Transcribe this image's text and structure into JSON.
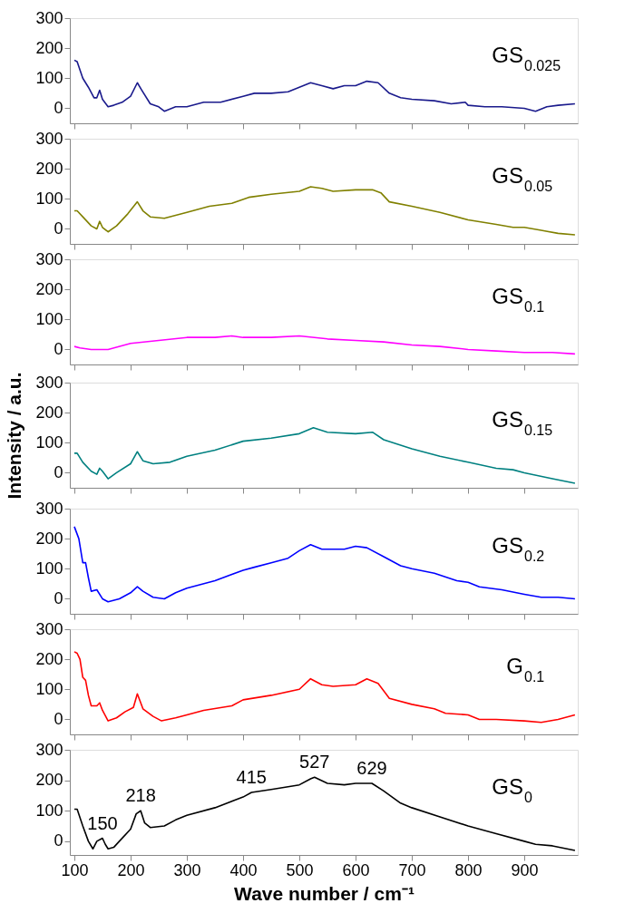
{
  "chart_data": [
    {
      "type": "line",
      "xlim": [
        92,
        995
      ],
      "xticks": [
        100,
        200,
        300,
        400,
        500,
        600,
        700,
        800,
        900
      ],
      "ylim": [
        -50,
        300
      ],
      "yticks": [
        0,
        100,
        200,
        300
      ],
      "tick_labels": "y",
      "series": [
        {
          "name": "GS$_{0.025}$",
          "color": "#1a1a8c",
          "x": [
            100,
            105,
            115,
            125,
            135,
            140,
            145,
            150,
            160,
            170,
            185,
            200,
            212,
            220,
            235,
            250,
            260,
            280,
            300,
            330,
            360,
            400,
            420,
            450,
            480,
            500,
            520,
            540,
            560,
            580,
            600,
            620,
            640,
            660,
            680,
            700,
            740,
            770,
            795,
            800,
            830,
            860,
            900,
            920,
            940,
            960,
            990
          ],
          "values": [
            160,
            155,
            100,
            70,
            35,
            35,
            60,
            30,
            5,
            10,
            20,
            40,
            85,
            60,
            15,
            5,
            -10,
            5,
            5,
            20,
            20,
            40,
            50,
            50,
            55,
            70,
            85,
            75,
            65,
            75,
            75,
            90,
            85,
            50,
            35,
            30,
            25,
            15,
            20,
            10,
            5,
            5,
            0,
            -10,
            5,
            10,
            15
          ]
        }
      ]
    },
    {
      "type": "line",
      "xlim": [
        92,
        995
      ],
      "xticks": [
        100,
        200,
        300,
        400,
        500,
        600,
        700,
        800,
        900
      ],
      "ylim": [
        -50,
        300
      ],
      "yticks": [
        0,
        100,
        200,
        300
      ],
      "tick_labels": "y",
      "series": [
        {
          "name": "GS$_{0.05}$",
          "color": "#808000",
          "x": [
            100,
            105,
            115,
            130,
            140,
            145,
            150,
            160,
            175,
            195,
            212,
            222,
            235,
            260,
            300,
            340,
            380,
            410,
            450,
            500,
            520,
            540,
            560,
            600,
            630,
            645,
            660,
            700,
            750,
            800,
            850,
            880,
            900,
            930,
            960,
            990
          ],
          "values": [
            60,
            60,
            40,
            10,
            0,
            25,
            5,
            -10,
            10,
            50,
            90,
            60,
            40,
            35,
            55,
            75,
            85,
            105,
            115,
            125,
            140,
            135,
            125,
            130,
            130,
            120,
            90,
            75,
            55,
            30,
            15,
            5,
            5,
            -5,
            -15,
            -20
          ]
        }
      ]
    },
    {
      "type": "line",
      "xlim": [
        92,
        995
      ],
      "xticks": [
        100,
        200,
        300,
        400,
        500,
        600,
        700,
        800,
        900
      ],
      "ylim": [
        -50,
        300
      ],
      "yticks": [
        0,
        100,
        200,
        300
      ],
      "tick_labels": "y",
      "series": [
        {
          "name": "GS$_{0.1}$",
          "color": "#ff00ff",
          "x": [
            100,
            110,
            130,
            160,
            200,
            250,
            300,
            350,
            380,
            400,
            450,
            500,
            550,
            600,
            650,
            700,
            750,
            800,
            850,
            900,
            950,
            990
          ],
          "values": [
            10,
            5,
            0,
            0,
            20,
            30,
            40,
            40,
            45,
            40,
            40,
            45,
            35,
            30,
            25,
            15,
            10,
            0,
            -5,
            -10,
            -10,
            -15
          ]
        }
      ]
    },
    {
      "type": "line",
      "xlim": [
        92,
        995
      ],
      "xticks": [
        100,
        200,
        300,
        400,
        500,
        600,
        700,
        800,
        900
      ],
      "ylim": [
        -50,
        300
      ],
      "yticks": [
        0,
        100,
        200,
        300
      ],
      "tick_labels": "y",
      "ylabel": "Intensity / a.u.",
      "series": [
        {
          "name": "GS$_{0.15}$",
          "color": "#008080",
          "x": [
            100,
            105,
            115,
            130,
            140,
            145,
            150,
            160,
            175,
            200,
            212,
            222,
            240,
            270,
            300,
            350,
            400,
            450,
            500,
            525,
            550,
            600,
            630,
            650,
            700,
            750,
            800,
            850,
            880,
            900,
            950,
            990
          ],
          "values": [
            65,
            65,
            35,
            5,
            -5,
            15,
            5,
            -20,
            0,
            30,
            70,
            40,
            30,
            35,
            55,
            75,
            105,
            115,
            130,
            150,
            135,
            130,
            135,
            110,
            80,
            55,
            35,
            15,
            10,
            0,
            -20,
            -35
          ]
        }
      ]
    },
    {
      "type": "line",
      "xlim": [
        92,
        995
      ],
      "xticks": [
        100,
        200,
        300,
        400,
        500,
        600,
        700,
        800,
        900
      ],
      "ylim": [
        -50,
        300
      ],
      "yticks": [
        0,
        100,
        200,
        300
      ],
      "tick_labels": "y",
      "series": [
        {
          "name": "GS$_{0.2}$",
          "color": "#0000ff",
          "x": [
            100,
            108,
            115,
            120,
            125,
            130,
            140,
            150,
            160,
            180,
            200,
            212,
            222,
            240,
            260,
            280,
            300,
            350,
            400,
            420,
            450,
            480,
            500,
            520,
            540,
            560,
            580,
            600,
            620,
            650,
            680,
            700,
            740,
            780,
            800,
            820,
            860,
            900,
            930,
            960,
            990
          ],
          "values": [
            240,
            200,
            120,
            120,
            70,
            25,
            30,
            0,
            -10,
            0,
            20,
            40,
            25,
            5,
            0,
            20,
            35,
            60,
            95,
            105,
            120,
            135,
            160,
            180,
            165,
            165,
            165,
            175,
            170,
            140,
            110,
            100,
            85,
            60,
            55,
            40,
            30,
            15,
            5,
            5,
            0
          ]
        }
      ]
    },
    {
      "type": "line",
      "xlim": [
        92,
        995
      ],
      "xticks": [
        100,
        200,
        300,
        400,
        500,
        600,
        700,
        800,
        900
      ],
      "ylim": [
        -50,
        300
      ],
      "yticks": [
        0,
        100,
        200,
        300
      ],
      "tick_labels": "y",
      "series": [
        {
          "name": "G$_{0.1}$",
          "color": "#ff0000",
          "x": [
            100,
            105,
            110,
            115,
            120,
            125,
            130,
            140,
            145,
            150,
            160,
            175,
            190,
            205,
            212,
            222,
            240,
            255,
            280,
            300,
            330,
            380,
            400,
            450,
            500,
            520,
            540,
            560,
            600,
            620,
            640,
            660,
            700,
            740,
            760,
            800,
            820,
            850,
            900,
            930,
            960,
            990
          ],
          "values": [
            225,
            220,
            200,
            140,
            130,
            80,
            45,
            45,
            55,
            30,
            -5,
            5,
            25,
            40,
            85,
            35,
            10,
            -5,
            5,
            15,
            30,
            45,
            65,
            80,
            100,
            135,
            115,
            110,
            115,
            135,
            120,
            70,
            50,
            35,
            20,
            15,
            0,
            0,
            -5,
            -10,
            0,
            15
          ]
        }
      ]
    },
    {
      "type": "line",
      "xlim": [
        92,
        995
      ],
      "xticks": [
        100,
        200,
        300,
        400,
        500,
        600,
        700,
        800,
        900
      ],
      "ylim": [
        -45,
        300
      ],
      "yticks": [
        0,
        100,
        200,
        300
      ],
      "xlabel": "Wave number / cm⁻¹",
      "series": [
        {
          "name": "GS$_{0}$",
          "color": "#000000",
          "x": [
            100,
            105,
            115,
            125,
            133,
            140,
            150,
            155,
            160,
            170,
            180,
            200,
            210,
            218,
            225,
            235,
            260,
            280,
            300,
            350,
            400,
            415,
            450,
            500,
            520,
            527,
            550,
            580,
            600,
            629,
            650,
            680,
            700,
            750,
            800,
            850,
            900,
            920,
            950,
            990
          ],
          "values": [
            105,
            105,
            50,
            0,
            -25,
            0,
            10,
            -10,
            -25,
            -20,
            0,
            40,
            90,
            100,
            60,
            45,
            50,
            70,
            85,
            110,
            145,
            160,
            170,
            185,
            205,
            210,
            190,
            185,
            190,
            190,
            165,
            125,
            110,
            80,
            50,
            25,
            0,
            -10,
            -15,
            -30
          ]
        }
      ],
      "annotations": [
        {
          "text": "150",
          "x": 150,
          "y": 10
        },
        {
          "text": "218",
          "x": 218,
          "y": 100
        },
        {
          "text": "415",
          "x": 415,
          "y": 160
        },
        {
          "text": "527",
          "x": 527,
          "y": 210
        },
        {
          "text": "629",
          "x": 629,
          "y": 190
        }
      ]
    }
  ]
}
